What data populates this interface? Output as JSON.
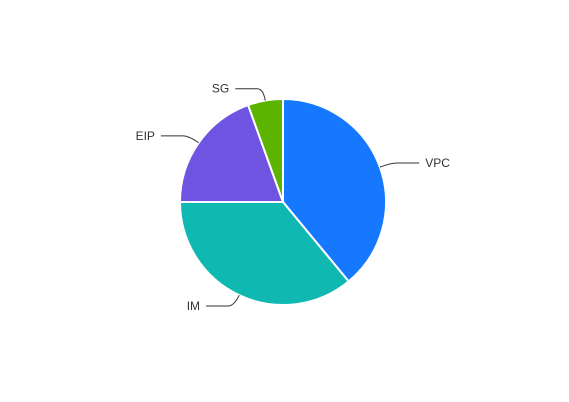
{
  "chart_data": {
    "type": "pie",
    "title": "",
    "legend": "none",
    "slices": [
      {
        "name": "VPC",
        "value": 39,
        "color": "#1677ff"
      },
      {
        "name": "IM",
        "value": 36,
        "color": "#0fb9b1"
      },
      {
        "name": "EIP",
        "value": 19.5,
        "color": "#6f53e1"
      },
      {
        "name": "SG",
        "value": 5.5,
        "color": "#5cb300"
      }
    ]
  }
}
